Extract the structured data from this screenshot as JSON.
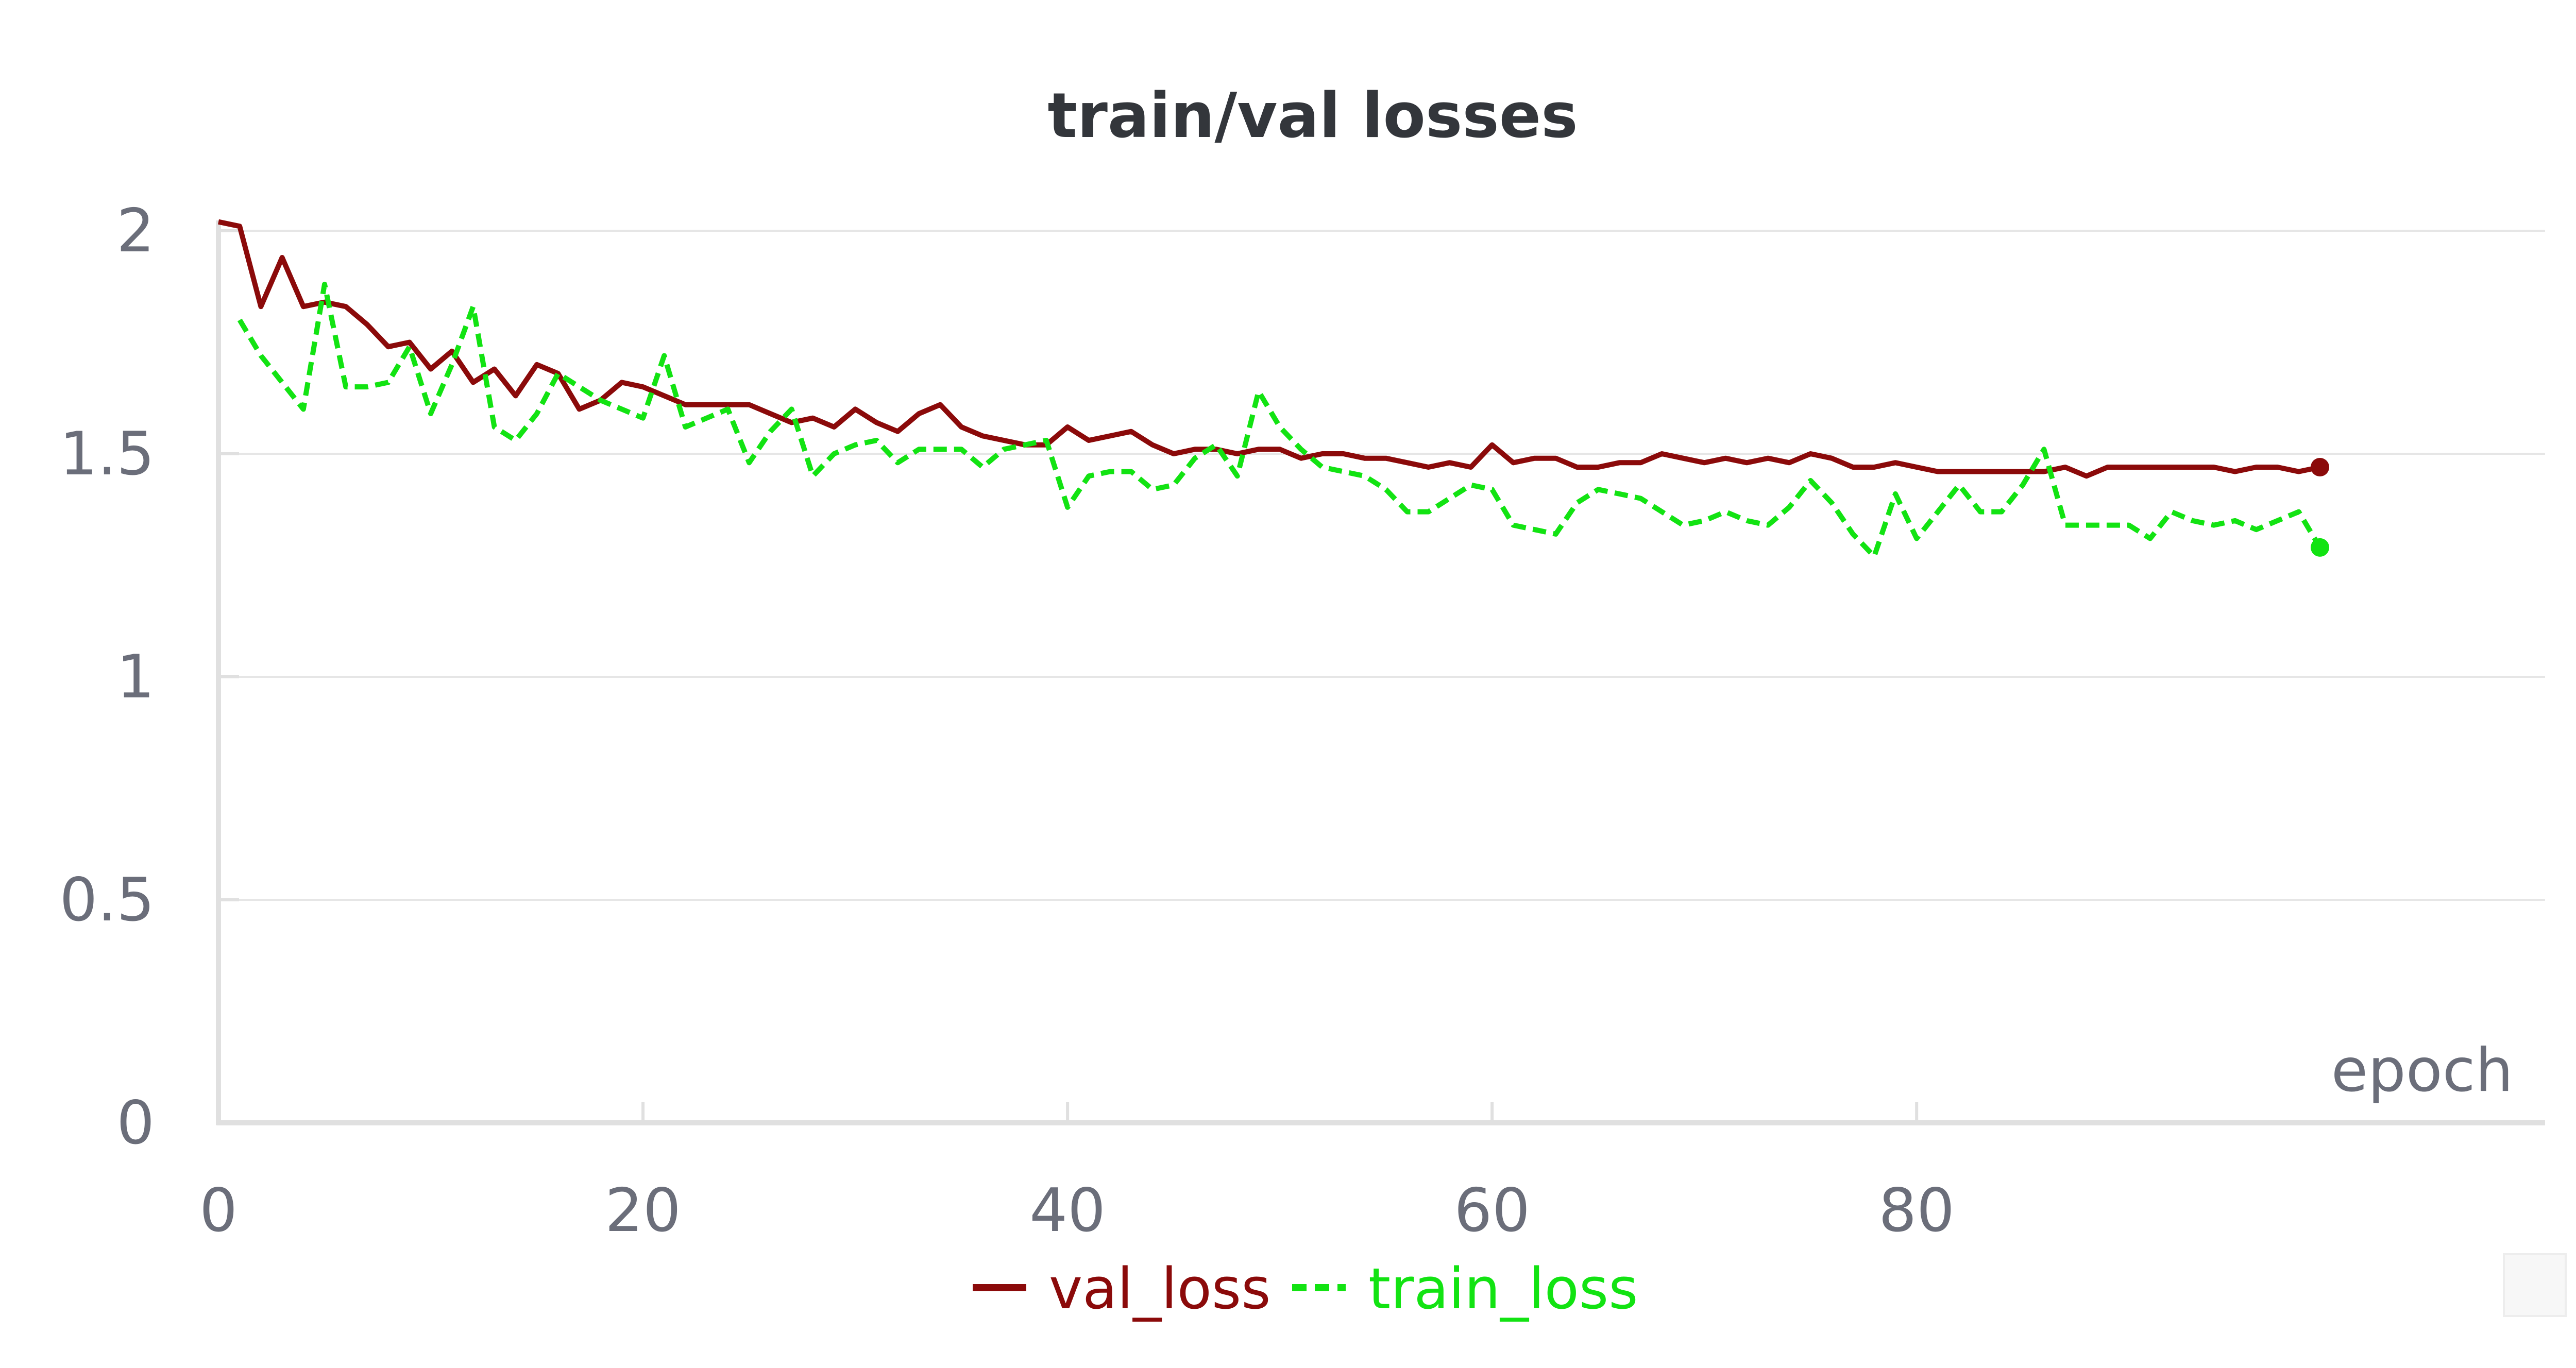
{
  "chart_data": {
    "type": "line",
    "title": "train/val losses",
    "xlabel": "epoch",
    "ylabel": "",
    "xlim": [
      0,
      99
    ],
    "ylim": [
      0,
      2
    ],
    "x_ticks": [
      "0",
      "20",
      "40",
      "60",
      "80"
    ],
    "y_ticks": [
      "0",
      "0.5",
      "1",
      "1.5",
      "2"
    ],
    "grid": "horizontal",
    "legend_position": "bottom-center",
    "series": [
      {
        "name": "val_loss",
        "color": "#8b0a0a",
        "style": "solid",
        "x": [
          0,
          1,
          2,
          3,
          4,
          5,
          6,
          7,
          8,
          9,
          10,
          11,
          12,
          13,
          14,
          15,
          16,
          17,
          18,
          19,
          20,
          21,
          22,
          23,
          24,
          25,
          26,
          27,
          28,
          29,
          30,
          31,
          32,
          33,
          34,
          35,
          36,
          37,
          38,
          39,
          40,
          41,
          42,
          43,
          44,
          45,
          46,
          47,
          48,
          49,
          50,
          51,
          52,
          53,
          54,
          55,
          56,
          57,
          58,
          59,
          60,
          61,
          62,
          63,
          64,
          65,
          66,
          67,
          68,
          69,
          70,
          71,
          72,
          73,
          74,
          75,
          76,
          77,
          78,
          79,
          80,
          81,
          82,
          83,
          84,
          85,
          86,
          87,
          88,
          89,
          90,
          91,
          92,
          93,
          94,
          95,
          96,
          97,
          98,
          99
        ],
        "values": [
          2.02,
          2.01,
          1.83,
          1.94,
          1.83,
          1.84,
          1.83,
          1.79,
          1.74,
          1.75,
          1.69,
          1.73,
          1.66,
          1.69,
          1.63,
          1.7,
          1.68,
          1.6,
          1.62,
          1.66,
          1.65,
          1.63,
          1.61,
          1.61,
          1.61,
          1.61,
          1.59,
          1.57,
          1.58,
          1.56,
          1.6,
          1.57,
          1.55,
          1.59,
          1.61,
          1.56,
          1.54,
          1.53,
          1.52,
          1.52,
          1.56,
          1.53,
          1.54,
          1.55,
          1.52,
          1.5,
          1.51,
          1.51,
          1.5,
          1.51,
          1.51,
          1.49,
          1.5,
          1.5,
          1.49,
          1.49,
          1.48,
          1.47,
          1.48,
          1.47,
          1.52,
          1.48,
          1.49,
          1.49,
          1.47,
          1.47,
          1.48,
          1.48,
          1.5,
          1.49,
          1.48,
          1.49,
          1.48,
          1.49,
          1.48,
          1.5,
          1.49,
          1.47,
          1.47,
          1.48,
          1.47,
          1.46,
          1.46,
          1.46,
          1.46,
          1.46,
          1.46,
          1.47,
          1.45,
          1.47,
          1.47,
          1.47,
          1.47,
          1.47,
          1.47,
          1.46,
          1.47,
          1.47,
          1.46,
          1.47
        ],
        "end_marker": true
      },
      {
        "name": "train_loss",
        "color": "#12e312",
        "style": "dashed",
        "x": [
          1,
          2,
          3,
          4,
          5,
          6,
          7,
          8,
          9,
          10,
          11,
          12,
          13,
          14,
          15,
          16,
          17,
          18,
          19,
          20,
          21,
          22,
          23,
          24,
          25,
          26,
          27,
          28,
          29,
          30,
          31,
          32,
          33,
          34,
          35,
          36,
          37,
          38,
          39,
          40,
          41,
          42,
          43,
          44,
          45,
          46,
          47,
          48,
          49,
          50,
          51,
          52,
          53,
          54,
          55,
          56,
          57,
          58,
          59,
          60,
          61,
          62,
          63,
          64,
          65,
          66,
          67,
          68,
          69,
          70,
          71,
          72,
          73,
          74,
          75,
          76,
          77,
          78,
          79,
          80,
          81,
          82,
          83,
          84,
          85,
          86,
          87,
          88,
          89,
          90,
          91,
          92,
          93,
          94,
          95,
          96,
          97,
          98,
          99
        ],
        "values": [
          1.8,
          1.72,
          1.66,
          1.6,
          1.88,
          1.65,
          1.65,
          1.66,
          1.74,
          1.59,
          1.7,
          1.83,
          1.56,
          1.53,
          1.59,
          1.68,
          1.65,
          1.62,
          1.6,
          1.58,
          1.72,
          1.56,
          1.58,
          1.6,
          1.48,
          1.55,
          1.6,
          1.45,
          1.5,
          1.52,
          1.53,
          1.48,
          1.51,
          1.51,
          1.51,
          1.47,
          1.51,
          1.52,
          1.53,
          1.38,
          1.45,
          1.46,
          1.46,
          1.42,
          1.43,
          1.49,
          1.52,
          1.45,
          1.64,
          1.56,
          1.51,
          1.47,
          1.46,
          1.45,
          1.42,
          1.37,
          1.37,
          1.4,
          1.43,
          1.42,
          1.34,
          1.33,
          1.32,
          1.39,
          1.42,
          1.41,
          1.4,
          1.37,
          1.34,
          1.35,
          1.37,
          1.35,
          1.34,
          1.38,
          1.44,
          1.39,
          1.32,
          1.27,
          1.41,
          1.31,
          1.37,
          1.43,
          1.37,
          1.37,
          1.43,
          1.51,
          1.34,
          1.34,
          1.34,
          1.34,
          1.31,
          1.37,
          1.35,
          1.34,
          1.35,
          1.33,
          1.35,
          1.37,
          1.29
        ],
        "end_marker": true
      }
    ],
    "corner_box_visible": true
  }
}
